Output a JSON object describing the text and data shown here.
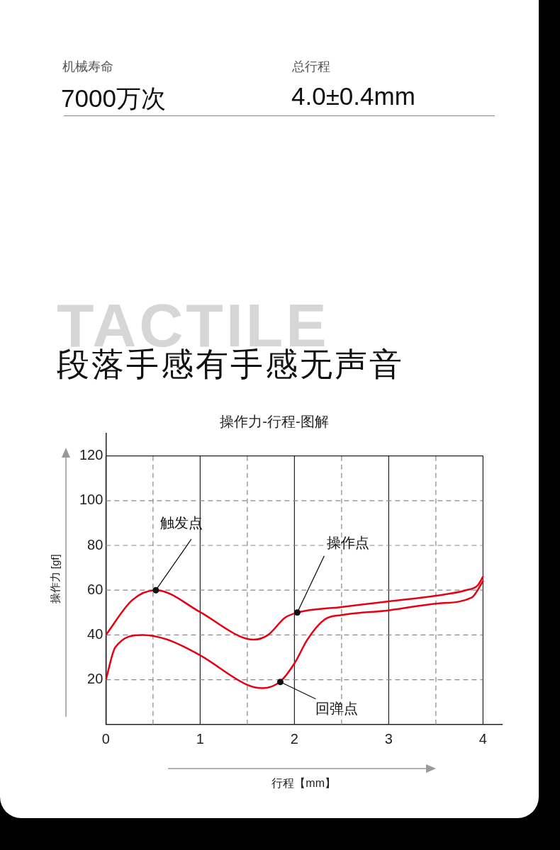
{
  "chart_data": {
    "type": "line",
    "title": "操作力-行程-图解",
    "subtitle": "段落手感有手感无声音",
    "xlabel": "行程【mm】",
    "ylabel": "操作力 [gf]",
    "annotations": [
      "机械寿命",
      "7000万次",
      "总行程",
      "4.0±0.4mm",
      "TACTILE",
      {
        "text": "触发点",
        "x": 0.53,
        "y": 60
      },
      {
        "text": "操作点",
        "x": 2.03,
        "y": 50
      },
      {
        "text": "回弹点",
        "x": 1.85,
        "y": 19
      }
    ],
    "series": [
      {
        "color": "#e60012",
        "x": [
          0,
          0.28,
          0.53,
          1.0,
          1.42,
          1.57,
          1.72,
          1.9,
          2.03,
          2.5,
          3,
          3.5,
          3.82,
          3.94,
          4
        ],
        "values": [
          40,
          55.6,
          60,
          50.2,
          39.4,
          37.9,
          40,
          47.7,
          50,
          52.5,
          55,
          57.5,
          60,
          62,
          66
        ]
      },
      {
        "color": "#e60012",
        "x": [
          0,
          0.1,
          0.39,
          0.64,
          1,
          1.5,
          1.66,
          1.85,
          2,
          2.14,
          2.32,
          2.5,
          3,
          3.5,
          3.88,
          4
        ],
        "values": [
          20,
          34.5,
          40,
          38.1,
          30.9,
          17.7,
          16.2,
          19.2,
          27.3,
          38.1,
          46.9,
          48.9,
          51,
          54,
          56.7,
          64
        ]
      }
    ],
    "xlim": [
      0,
      4.2
    ],
    "xticks": [
      0,
      {
        "value": 0.5,
        "label": null
      },
      1,
      {
        "value": 1.5,
        "label": null
      },
      2,
      {
        "value": 2.5,
        "label": null
      },
      3,
      {
        "value": 3.5,
        "label": null
      },
      4
    ],
    "ylim": [
      0,
      130
    ],
    "yticks": [
      20,
      40,
      60,
      80,
      100,
      120
    ],
    "grid": true,
    "legend": false,
    "marker": "none",
    "line_style": "solid"
  }
}
